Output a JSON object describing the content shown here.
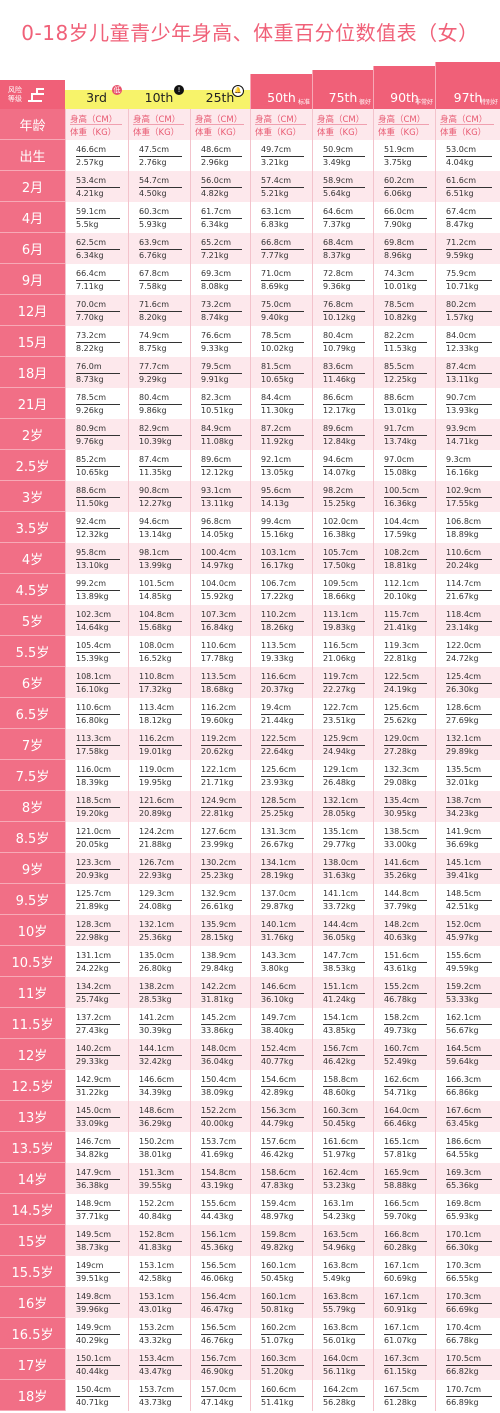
{
  "title": "0-18岁儿童青少年身高、体重百分位数值表（女）",
  "risk_label": [
    "风险",
    "等级"
  ],
  "colors": {
    "pink": "#f06078",
    "yellow": "#f7f36a",
    "light_pink": "#fde8ec"
  },
  "percentiles": [
    {
      "label": "3rd",
      "tag": "",
      "badge": "低"
    },
    {
      "label": "10th",
      "tag": "",
      "badge": "!"
    },
    {
      "label": "25th",
      "tag": "",
      "badge": "🔔"
    },
    {
      "label": "50th",
      "tag": "标准",
      "badge": ""
    },
    {
      "label": "75th",
      "tag": "很好",
      "badge": ""
    },
    {
      "label": "90th",
      "tag": "非常好",
      "badge": ""
    },
    {
      "label": "97th",
      "tag": "特别好",
      "badge": ""
    }
  ],
  "header_row": {
    "age": "年龄",
    "height": "身高（CM）",
    "weight": "体重（KG）"
  },
  "rows": [
    {
      "age": "出生",
      "h": [
        "46.6cm",
        "47.5cm",
        "48.6cm",
        "49.7cm",
        "50.9cm",
        "51.9cm",
        "53.0cm"
      ],
      "w": [
        "2.57kg",
        "2.76kg",
        "2.96kg",
        "3.21kg",
        "3.49kg",
        "3.75kg",
        "4.04kg"
      ]
    },
    {
      "age": "2月",
      "h": [
        "53.4cm",
        "54.7cm",
        "56.0cm",
        "57.4cm",
        "58.9cm",
        "60.2cm",
        "61.6cm"
      ],
      "w": [
        "4.21kg",
        "4.50kg",
        "4.82kg",
        "5.21kg",
        "5.64kg",
        "6.06kg",
        "6.51kg"
      ]
    },
    {
      "age": "4月",
      "h": [
        "59.1cm",
        "60.3cm",
        "61.7cm",
        "63.1cm",
        "64.6cm",
        "66.0cm",
        "67.4cm"
      ],
      "w": [
        "5.5kg",
        "5.93kg",
        "6.34kg",
        "6.83kg",
        "7.37kg",
        "7.90kg",
        "8.47kg"
      ]
    },
    {
      "age": "6月",
      "h": [
        "62.5cm",
        "63.9cm",
        "65.2cm",
        "66.8cm",
        "68.4cm",
        "69.8cm",
        "71.2cm"
      ],
      "w": [
        "6.34kg",
        "6.76kg",
        "7.21kg",
        "7.77kg",
        "8.37kg",
        "8.96kg",
        "9.59kg"
      ]
    },
    {
      "age": "9月",
      "h": [
        "66.4cm",
        "67.8cm",
        "69.3cm",
        "71.0cm",
        "72.8cm",
        "74.3cm",
        "75.9cm"
      ],
      "w": [
        "7.11kg",
        "7.58kg",
        "8.08kg",
        "8.69kg",
        "9.36kg",
        "10.01kg",
        "10.71kg"
      ]
    },
    {
      "age": "12月",
      "h": [
        "70.0cm",
        "71.6cm",
        "73.2cm",
        "75.0cm",
        "76.8cm",
        "78.5cm",
        "80.2cm"
      ],
      "w": [
        "7.70kg",
        "8.20kg",
        "8.74kg",
        "9.40kg",
        "10.12kg",
        "10.82kg",
        "1.57kg"
      ]
    },
    {
      "age": "15月",
      "h": [
        "73.2cm",
        "74.9cm",
        "76.6cm",
        "78.5cm",
        "80.4cm",
        "82.2cm",
        "84.0cm"
      ],
      "w": [
        "8.22kg",
        "8.75kg",
        "9.33kg",
        "10.02kg",
        "10.79kg",
        "11.53kg",
        "12.33kg"
      ]
    },
    {
      "age": "18月",
      "h": [
        "76.0m",
        "77.7cm",
        "79.5cm",
        "81.5cm",
        "83.6cm",
        "85.5cm",
        "87.4cm"
      ],
      "w": [
        "8.73kg",
        "9.29kg",
        "9.91kg",
        "10.65kg",
        "11.46kg",
        "12.25kg",
        "13.11kg"
      ]
    },
    {
      "age": "21月",
      "h": [
        "78.5cm",
        "80.4cm",
        "82.3cm",
        "84.4cm",
        "86.6cm",
        "88.6cm",
        "90.7cm"
      ],
      "w": [
        "9.26kg",
        "9.86kg",
        "10.51kg",
        "11.30kg",
        "12.17kg",
        "13.01kg",
        "13.93kg"
      ]
    },
    {
      "age": "2岁",
      "h": [
        "80.9cm",
        "82.9cm",
        "84.9cm",
        "87.2cm",
        "89.6cm",
        "91.7cm",
        "93.9cm"
      ],
      "w": [
        "9.76kg",
        "10.39kg",
        "11.08kg",
        "11.92kg",
        "12.84kg",
        "13.74kg",
        "14.71kg"
      ]
    },
    {
      "age": "2.5岁",
      "h": [
        "85.2cm",
        "87.4cm",
        "89.6cm",
        "92.1cm",
        "94.6cm",
        "97.0cm",
        "9.3cm"
      ],
      "w": [
        "10.65kg",
        "11.35kg",
        "12.12kg",
        "13.05kg",
        "14.07kg",
        "15.08kg",
        "16.16kg"
      ]
    },
    {
      "age": "3岁",
      "h": [
        "88.6cm",
        "90.8cm",
        "93.1cm",
        "95.6cm",
        "98.2cm",
        "100.5cm",
        "102.9cm"
      ],
      "w": [
        "11.50kg",
        "12.27kg",
        "13.11kg",
        "14.13g",
        "15.25kg",
        "16.36kg",
        "17.55kg"
      ]
    },
    {
      "age": "3.5岁",
      "h": [
        "92.4cm",
        "94.6cm",
        "96.8cm",
        "99.4cm",
        "102.0cm",
        "104.4cm",
        "106.8cm"
      ],
      "w": [
        "12.32kg",
        "13.14kg",
        "14.05kg",
        "15.16kg",
        "16.38kg",
        "17.59kg",
        "18.89kg"
      ]
    },
    {
      "age": "4岁",
      "h": [
        "95.8cm",
        "98.1cm",
        "100.4cm",
        "103.1cm",
        "105.7cm",
        "108.2cm",
        "110.6cm"
      ],
      "w": [
        "13.10kg",
        "13.99kg",
        "14.97kg",
        "16.17kg",
        "17.50kg",
        "18.81kg",
        "20.24kg"
      ]
    },
    {
      "age": "4.5岁",
      "h": [
        "99.2cm",
        "101.5cm",
        "104.0cm",
        "106.7cm",
        "109.5cm",
        "112.1cm",
        "114.7cm"
      ],
      "w": [
        "13.89kg",
        "14.85kg",
        "15.92kg",
        "17.22kg",
        "18.66kg",
        "20.10kg",
        "21.67kg"
      ]
    },
    {
      "age": "5岁",
      "h": [
        "102.3cm",
        "104.8cm",
        "107.3cm",
        "110.2cm",
        "113.1cm",
        "115.7cm",
        "118.4cm"
      ],
      "w": [
        "14.64kg",
        "15.68kg",
        "16.84kg",
        "18.26kg",
        "19.83kg",
        "21.41kg",
        "23.14kg"
      ]
    },
    {
      "age": "5.5岁",
      "h": [
        "105.4cm",
        "108.0cm",
        "110.6cm",
        "113.5cm",
        "116.5cm",
        "119.3cm",
        "122.0cm"
      ],
      "w": [
        "15.39kg",
        "16.52kg",
        "17.78kg",
        "19.33kg",
        "21.06kg",
        "22.81kg",
        "24.72kg"
      ]
    },
    {
      "age": "6岁",
      "h": [
        "108.1cm",
        "110.8cm",
        "113.5cm",
        "116.6cm",
        "119.7cm",
        "122.5cm",
        "125.4cm"
      ],
      "w": [
        "16.10kg",
        "17.32kg",
        "18.68kg",
        "20.37kg",
        "22.27kg",
        "24.19kg",
        "26.30kg"
      ]
    },
    {
      "age": "6.5岁",
      "h": [
        "110.6cm",
        "113.4cm",
        "116.2cm",
        "19.4cm",
        "122.7cm",
        "125.6cm",
        "128.6cm"
      ],
      "w": [
        "16.80kg",
        "18.12kg",
        "19.60kg",
        "21.44kg",
        "23.51kg",
        "25.62kg",
        "27.69kg"
      ]
    },
    {
      "age": "7岁",
      "h": [
        "113.3cm",
        "116.2cm",
        "119.2cm",
        "122.5cm",
        "125.9cm",
        "129.0cm",
        "132.1cm"
      ],
      "w": [
        "17.58kg",
        "19.01kg",
        "20.62kg",
        "22.64kg",
        "24.94kg",
        "27.28kg",
        "29.89kg"
      ]
    },
    {
      "age": "7.5岁",
      "h": [
        "116.0cm",
        "119.0cm",
        "122.1cm",
        "125.6cm",
        "129.1cm",
        "132.3cm",
        "135.5cm"
      ],
      "w": [
        "18.39kg",
        "19.95kg",
        "21.71kg",
        "23.93kg",
        "26.48kg",
        "29.08kg",
        "32.01kg"
      ]
    },
    {
      "age": "8岁",
      "h": [
        "118.5cm",
        "121.6cm",
        "124.9cm",
        "128.5cm",
        "132.1cm",
        "135.4cm",
        "138.7cm"
      ],
      "w": [
        "19.20kg",
        "20.89kg",
        "22.81kg",
        "25.25kg",
        "28.05kg",
        "30.95kg",
        "34.23kg"
      ]
    },
    {
      "age": "8.5岁",
      "h": [
        "121.0cm",
        "124.2cm",
        "127.6cm",
        "131.3cm",
        "135.1cm",
        "138.5cm",
        "141.9cm"
      ],
      "w": [
        "20.05kg",
        "21.88kg",
        "23.99kg",
        "26.67kg",
        "29.77kg",
        "33.00kg",
        "36.69kg"
      ]
    },
    {
      "age": "9岁",
      "h": [
        "123.3cm",
        "126.7cm",
        "130.2cm",
        "134.1cm",
        "138.0cm",
        "141.6cm",
        "145.1cm"
      ],
      "w": [
        "20.93kg",
        "22.93kg",
        "25.23kg",
        "28.19kg",
        "31.63kg",
        "35.26kg",
        "39.41kg"
      ]
    },
    {
      "age": "9.5岁",
      "h": [
        "125.7cm",
        "129.3cm",
        "132.9cm",
        "137.0cm",
        "141.1cm",
        "144.8cm",
        "148.5cm"
      ],
      "w": [
        "21.89kg",
        "24.08kg",
        "26.61kg",
        "29.87kg",
        "33.72kg",
        "37.79kg",
        "42.51kg"
      ]
    },
    {
      "age": "10岁",
      "h": [
        "128.3cm",
        "132.1cm",
        "135.9cm",
        "140.1cm",
        "144.4cm",
        "148.2cm",
        "152.0cm"
      ],
      "w": [
        "22.98kg",
        "25.36kg",
        "28.15kg",
        "31.76kg",
        "36.05kg",
        "40.63kg",
        "45.97kg"
      ]
    },
    {
      "age": "10.5岁",
      "h": [
        "131.1cm",
        "135.0cm",
        "138.9cm",
        "143.3cm",
        "147.7cm",
        "151.6cm",
        "155.6cm"
      ],
      "w": [
        "24.22kg",
        "26.80kg",
        "29.84kg",
        "3.80kg",
        "38.53kg",
        "43.61kg",
        "49.59kg"
      ]
    },
    {
      "age": "11岁",
      "h": [
        "134.2cm",
        "138.2cm",
        "142.2cm",
        "146.6cm",
        "151.1cm",
        "155.2cm",
        "159.2cm"
      ],
      "w": [
        "25.74kg",
        "28.53kg",
        "31.81kg",
        "36.10kg",
        "41.24kg",
        "46.78kg",
        "53.33kg"
      ]
    },
    {
      "age": "11.5岁",
      "h": [
        "137.2cm",
        "141.2cm",
        "145.2cm",
        "149.7cm",
        "154.1cm",
        "158.2cm",
        "162.1cm"
      ],
      "w": [
        "27.43kg",
        "30.39kg",
        "33.86kg",
        "38.40kg",
        "43.85kg",
        "49.73kg",
        "56.67kg"
      ]
    },
    {
      "age": "12岁",
      "h": [
        "140.2cm",
        "144.1cm",
        "148.0cm",
        "152.4cm",
        "156.7cm",
        "160.7cm",
        "164.5cm"
      ],
      "w": [
        "29.33kg",
        "32.42kg",
        "36.04kg",
        "40.77kg",
        "46.42kg",
        "52.49kg",
        "59.64kg"
      ]
    },
    {
      "age": "12.5岁",
      "h": [
        "142.9cm",
        "146.6cm",
        "150.4cm",
        "154.6cm",
        "158.8cm",
        "162.6cm",
        "166.3cm"
      ],
      "w": [
        "31.22kg",
        "34.39kg",
        "38.09kg",
        "42.89kg",
        "48.60kg",
        "54.71kg",
        "66.86kg"
      ]
    },
    {
      "age": "13岁",
      "h": [
        "145.0cm",
        "148.6cm",
        "152.2cm",
        "156.3cm",
        "160.3cm",
        "164.0cm",
        "167.6cm"
      ],
      "w": [
        "33.09kg",
        "36.29kg",
        "40.00kg",
        "44.79kg",
        "50.45kg",
        "66.46kg",
        "63.45kg"
      ]
    },
    {
      "age": "13.5岁",
      "h": [
        "146.7cm",
        "150.2cm",
        "153.7cm",
        "157.6cm",
        "161.6cm",
        "165.1cm",
        "186.6cm"
      ],
      "w": [
        "34.82kg",
        "38.01kg",
        "41.69kg",
        "46.42kg",
        "51.97kg",
        "57.81kg",
        "64.55kg"
      ]
    },
    {
      "age": "14岁",
      "h": [
        "147.9cm",
        "151.3cm",
        "154.8cm",
        "158.6cm",
        "162.4cm",
        "165.9cm",
        "169.3cm"
      ],
      "w": [
        "36.38kg",
        "39.55kg",
        "43.19kg",
        "47.83kg",
        "53.23kg",
        "58.88kg",
        "65.36kg"
      ]
    },
    {
      "age": "14.5岁",
      "h": [
        "148.9cm",
        "152.2cm",
        "155.6cm",
        "159.4cm",
        "163.1m",
        "166.5cm",
        "169.8cm"
      ],
      "w": [
        "37.71kg",
        "40.84kg",
        "44.43kg",
        "48.97kg",
        "54.23kg",
        "59.70kg",
        "65.93kg"
      ]
    },
    {
      "age": "15岁",
      "h": [
        "149.5cm",
        "152.8cm",
        "156.1cm",
        "159.8cm",
        "163.5cm",
        "166.8cm",
        "170.1cm"
      ],
      "w": [
        "38.73kg",
        "41.83kg",
        "45.36kg",
        "49.82kg",
        "54.96kg",
        "60.28kg",
        "66.30kg"
      ]
    },
    {
      "age": "15.5岁",
      "h": [
        "149cm",
        "153.1cm",
        "156.5cm",
        "160.1cm",
        "163.8cm",
        "167.1cm",
        "170.3cm"
      ],
      "w": [
        "39.51kg",
        "42.58kg",
        "46.06kg",
        "50.45kg",
        "5.49kg",
        "60.69kg",
        "66.55kg"
      ]
    },
    {
      "age": "16岁",
      "h": [
        "149.8cm",
        "153.1cm",
        "156.4cm",
        "160.1cm",
        "163.8cm",
        "167.1cm",
        "170.3cm"
      ],
      "w": [
        "39.96kg",
        "43.01kg",
        "46.47kg",
        "50.81kg",
        "55.79kg",
        "60.91kg",
        "66.69kg"
      ]
    },
    {
      "age": "16.5岁",
      "h": [
        "149.9cm",
        "153.2cm",
        "156.5cm",
        "160.2cm",
        "163.8cm",
        "167.1cm",
        "170.4cm"
      ],
      "w": [
        "40.29kg",
        "43.32kg",
        "46.76kg",
        "51.07kg",
        "56.01kg",
        "61.07kg",
        "66.78kg"
      ]
    },
    {
      "age": "17岁",
      "h": [
        "150.1cm",
        "153.4cm",
        "156.7cm",
        "160.3cm",
        "164.0cm",
        "167.3cm",
        "170.5cm"
      ],
      "w": [
        "40.44kg",
        "43.47kg",
        "46.90kg",
        "51.20kg",
        "56.11kg",
        "61.15kg",
        "66.82kg"
      ]
    },
    {
      "age": "18岁",
      "h": [
        "150.4cm",
        "153.7cm",
        "157.0cm",
        "160.6cm",
        "164.2cm",
        "167.5cm",
        "170.7cm"
      ],
      "w": [
        "40.71kg",
        "43.73kg",
        "47.14kg",
        "51.41kg",
        "56.28kg",
        "61.28kg",
        "66.89kg"
      ]
    }
  ]
}
